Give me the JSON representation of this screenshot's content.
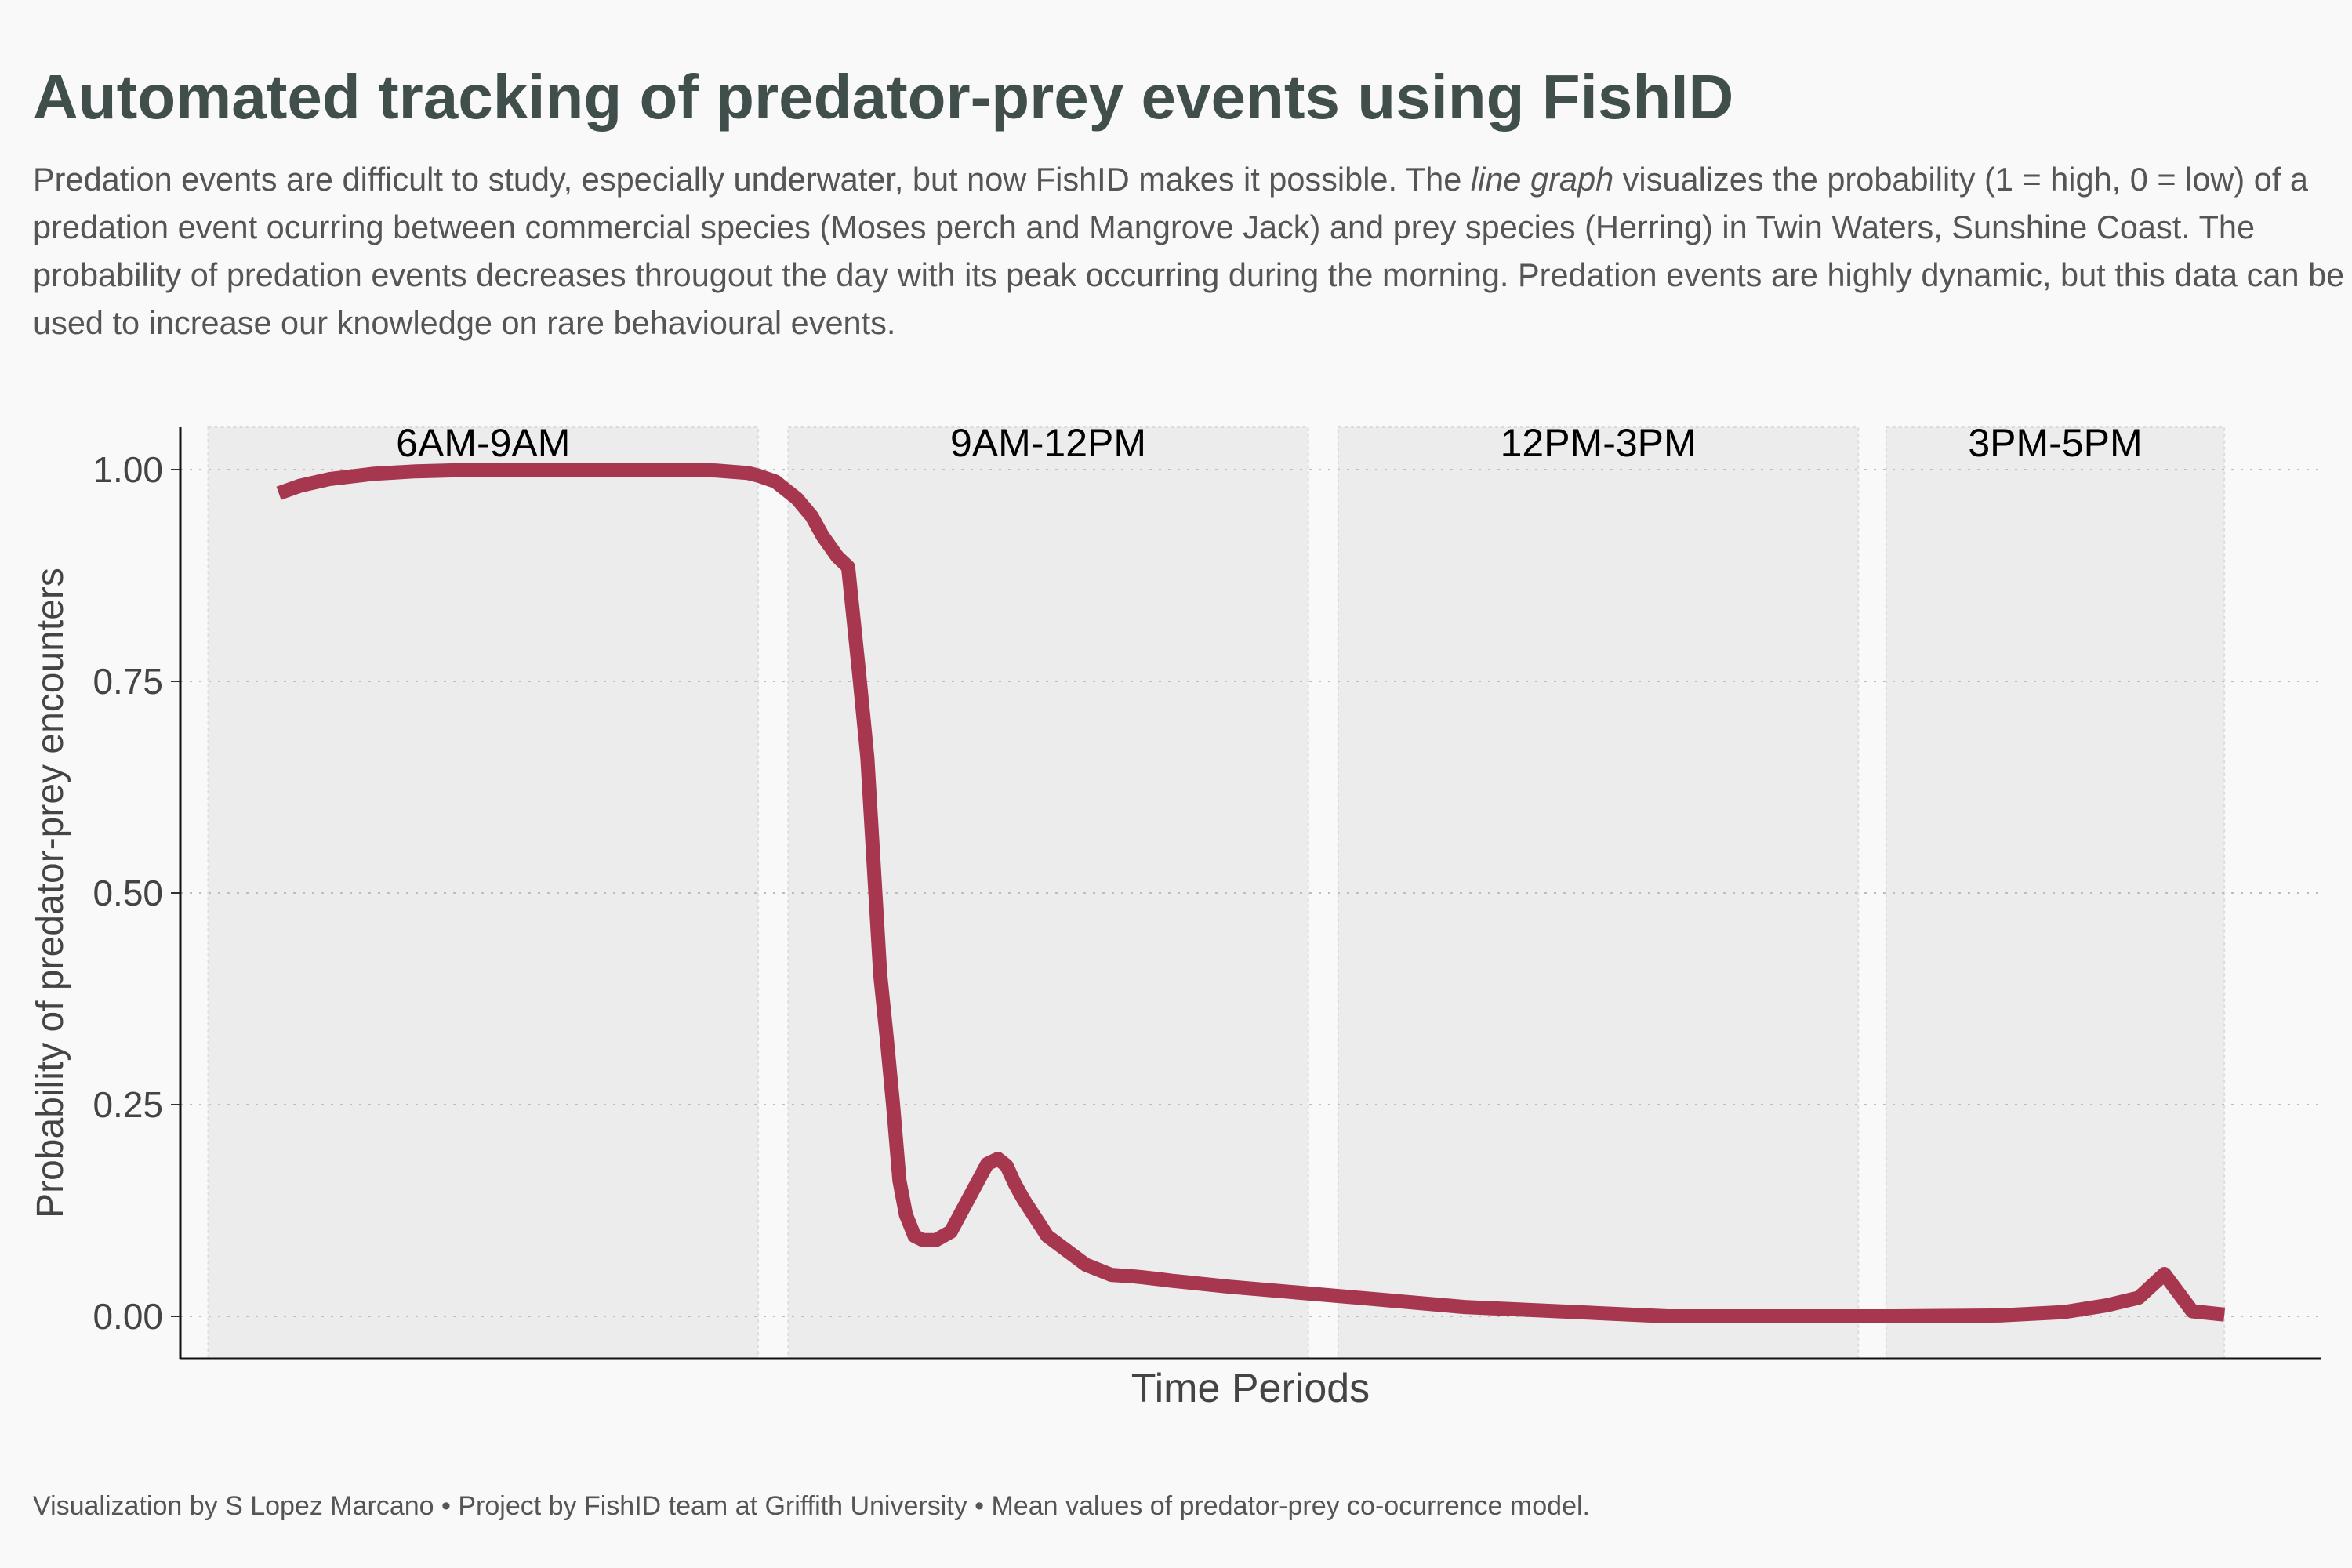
{
  "title": "Automated tracking of predator-prey events using FishID",
  "subtitle": {
    "before": "Predation events are difficult to study, especially underwater, but now FishID makes it possible. The ",
    "emphasis": "line graph",
    "after": " visualizes the probability (1 = high, 0 = low) of a predation event ocurring between commercial species (Moses perch and Mangrove Jack) and prey species (Herring) in Twin Waters, Sunshine Coast. The probability of predation events decreases througout the day with its peak occurring during the morning. Predation events are highly dynamic, but this data can be used to increase our knowledge on rare behavioural events."
  },
  "caption": "Visualization by S Lopez Marcano  •  Project by FishID team at Griffith University  • Mean values of predator-prey co-ocurrence model.",
  "chart_data": {
    "type": "line",
    "xlabel": "Time Periods",
    "ylabel": "Probability of predator-prey encounters",
    "ylim": [
      -0.05,
      1.05
    ],
    "xlim": [
      0,
      100
    ],
    "y_ticks": [
      0.0,
      0.25,
      0.5,
      0.75,
      1.0
    ],
    "y_tick_labels": [
      "0.00",
      "0.25",
      "0.50",
      "0.75",
      "1.00"
    ],
    "grid": "horizontal dotted",
    "line_color": "#a6374f",
    "periods": [
      {
        "label": "6AM-9AM",
        "x_start": 1.3,
        "x_end": 27.0
      },
      {
        "label": "9AM-12PM",
        "x_start": 28.4,
        "x_end": 52.7
      },
      {
        "label": "12PM-3PM",
        "x_start": 54.1,
        "x_end": 78.4
      },
      {
        "label": "3PM-5PM",
        "x_start": 79.7,
        "x_end": 95.5
      }
    ],
    "x": [
      4.6,
      5.6,
      7.0,
      9.0,
      11.0,
      14.0,
      18.0,
      22.0,
      25.0,
      26.5,
      27.0,
      27.8,
      28.2,
      28.8,
      29.5,
      30.0,
      30.7,
      31.2,
      31.7,
      32.1,
      32.4,
      32.7,
      33.0,
      33.3,
      33.6,
      33.9,
      34.3,
      34.7,
      35.3,
      36.0,
      37.7,
      38.2,
      38.6,
      39.0,
      39.4,
      40.5,
      42.3,
      43.5,
      44.6,
      45.0,
      45.7,
      46.3,
      47.5,
      49.0,
      55.0,
      60.0,
      69.5,
      70.5,
      75.0,
      80.0,
      85.0,
      88.0,
      90.0,
      91.5,
      92.7,
      94.0,
      95.5
    ],
    "y": [
      0.972,
      0.981,
      0.989,
      0.995,
      0.998,
      1.0,
      1.0,
      1.0,
      0.999,
      0.996,
      0.993,
      0.986,
      0.978,
      0.966,
      0.945,
      0.922,
      0.897,
      0.885,
      0.763,
      0.66,
      0.532,
      0.404,
      0.33,
      0.25,
      0.16,
      0.12,
      0.095,
      0.09,
      0.09,
      0.1,
      0.18,
      0.186,
      0.178,
      0.156,
      0.138,
      0.095,
      0.061,
      0.049,
      0.047,
      0.046,
      0.044,
      0.042,
      0.039,
      0.035,
      0.022,
      0.011,
      0.0,
      0.0,
      0.0,
      0.0,
      0.001,
      0.005,
      0.013,
      0.022,
      0.05,
      0.006,
      0.002
    ]
  }
}
